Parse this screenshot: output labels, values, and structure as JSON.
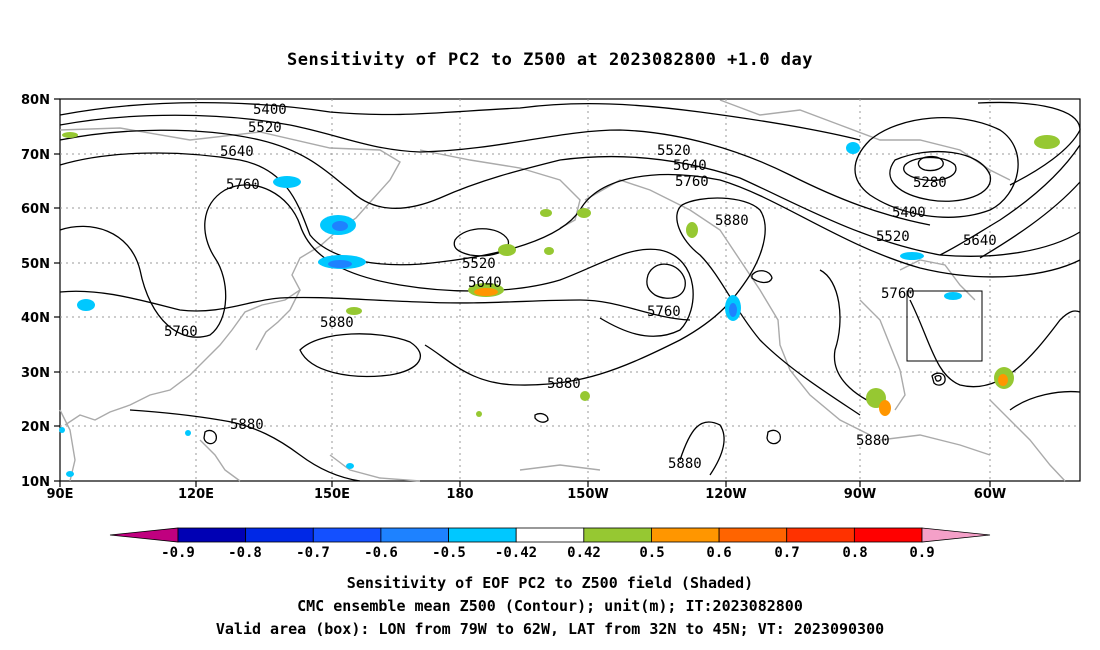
{
  "title": "Sensitivity of PC2 to Z500 at 2023082800 +1.0 day",
  "axes": {
    "lat_labels": [
      "80N",
      "70N",
      "60N",
      "50N",
      "40N",
      "30N",
      "20N",
      "10N"
    ],
    "lon_labels": [
      "90E",
      "120E",
      "150E",
      "180",
      "150W",
      "120W",
      "90W",
      "60W"
    ]
  },
  "contour_labels": [
    {
      "text": "5400"
    },
    {
      "text": "5520"
    },
    {
      "text": "5640"
    },
    {
      "text": "5760"
    },
    {
      "text": "5760"
    },
    {
      "text": "5880"
    },
    {
      "text": "5880"
    },
    {
      "text": "5520"
    },
    {
      "text": "5640"
    },
    {
      "text": "5880"
    },
    {
      "text": "5520"
    },
    {
      "text": "5640"
    },
    {
      "text": "5760"
    },
    {
      "text": "5880"
    },
    {
      "text": "5760"
    },
    {
      "text": "5880"
    },
    {
      "text": "5280"
    },
    {
      "text": "5400"
    },
    {
      "text": "5520"
    },
    {
      "text": "5640"
    },
    {
      "text": "5760"
    },
    {
      "text": "5880"
    }
  ],
  "valid_box": {
    "lon_west": "79W",
    "lon_east": "62W",
    "lat_south": "32N",
    "lat_north": "45N"
  },
  "colorbar": {
    "labels": [
      "-0.9",
      "-0.8",
      "-0.7",
      "-0.6",
      "-0.5",
      "-0.42",
      "0.42",
      "0.5",
      "0.6",
      "0.7",
      "0.8",
      "0.9"
    ],
    "colors": [
      "#c0007f",
      "#0000b4",
      "#0028e6",
      "#1450ff",
      "#1e82ff",
      "#00c8ff",
      "#ffffff",
      "#96c832",
      "#ff9600",
      "#ff6400",
      "#ff3200",
      "#ff0000",
      "#f4a0c8"
    ]
  },
  "captions": {
    "line1": "Sensitivity of EOF PC2 to Z500 field (Shaded)",
    "line2": "CMC ensemble mean Z500 (Contour); unit(m); IT:2023082800",
    "line3": "Valid area (box): LON from 79W to 62W, LAT from 32N to 45N; VT: 2023090300"
  }
}
